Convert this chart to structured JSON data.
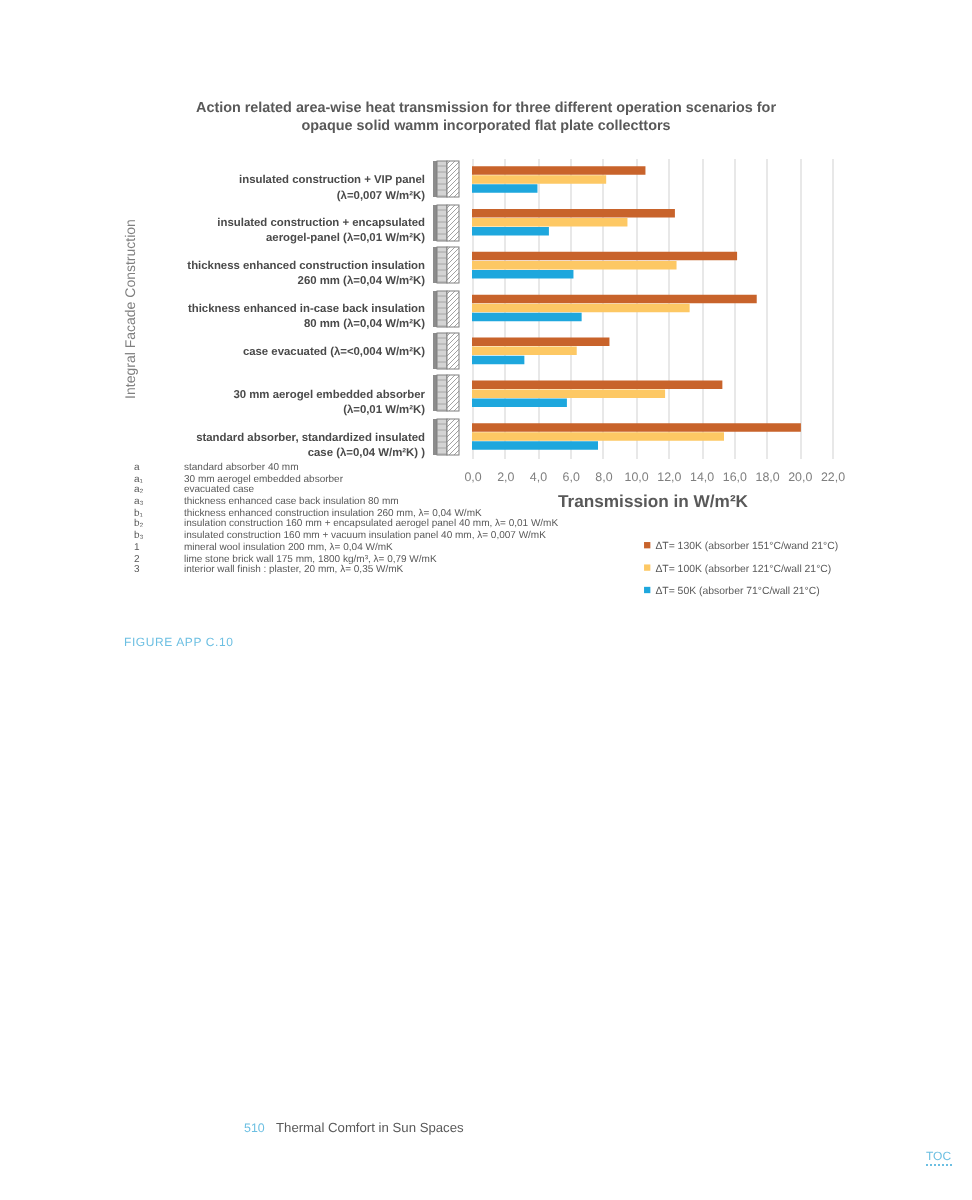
{
  "chart_data": {
    "type": "bar",
    "orientation": "horizontal",
    "title": "Action related area-wise heat transmission for three different operation scenarios for\nopaque solid wamm incorporated flat plate collecttors",
    "xlabel": "Transmission in W/m²K",
    "ylabel": "Integral Facade Construction",
    "categories": [
      "insulated construction + VIP panel\n(λ=0,007 W/m²K)",
      "insulated construction + encapsulated\naerogel-panel (λ=0,01 W/m²K)",
      "thickness enhanced construction insulation\n260 mm (λ=0,04 W/m²K)",
      "thickness enhanced in-case back insulation\n80 mm (λ=0,04 W/m²K)",
      "case evacuated (λ=<0,004 W/m²K)",
      "30 mm aerogel embedded absorber\n(λ=0,01 W/m²K)",
      "standard absorber, standardized insulated\ncase (λ=0,04 W/m²K) )"
    ],
    "series": [
      {
        "name": "ΔT= 130K (absorber 151°C/wand 21°C)",
        "color": "#c8632b",
        "values": [
          10.6,
          12.4,
          16.2,
          17.4,
          8.4,
          15.3,
          20.1
        ]
      },
      {
        "name": "ΔT= 100K (absorber 121°C/wall 21°C)",
        "color": "#fdc864",
        "values": [
          8.2,
          9.5,
          12.5,
          13.3,
          6.4,
          11.8,
          15.4
        ]
      },
      {
        "name": "ΔT= 50K (absorber 71°C/wall 21°C)",
        "color": "#1ea7dd",
        "values": [
          4.0,
          4.7,
          6.2,
          6.7,
          3.2,
          5.8,
          7.7
        ]
      }
    ],
    "xlim": [
      0,
      22
    ],
    "xticks": [
      {
        "value": 0,
        "label": "0,0"
      },
      {
        "value": 2,
        "label": "2,0"
      },
      {
        "value": 4,
        "label": "4,0"
      },
      {
        "value": 6,
        "label": "6,0"
      },
      {
        "value": 8,
        "label": "8,0"
      },
      {
        "value": 10,
        "label": "10,0"
      },
      {
        "value": 12,
        "label": "12,0"
      },
      {
        "value": 14,
        "label": "14,0"
      },
      {
        "value": 16,
        "label": "16,0"
      },
      {
        "value": 18,
        "label": "18,0"
      },
      {
        "value": 20,
        "label": "20,0"
      },
      {
        "value": 22,
        "label": "22,0"
      }
    ],
    "grid": "x",
    "legend": "bottom right",
    "annotations": [
      "a\tstandard absorber 40 mm",
      "a₁\t30 mm aerogel embedded absorber",
      "a₂\tevacuated case",
      "a₃\tthickness enhanced case back insulation 80 mm",
      "b₁\tthickness enhanced construction insulation 260 mm, λ= 0,04 W/mK",
      "b₂\tinsulation construction 160 mm + encapsulated aerogel panel 40 mm, λ= 0,01 W/mK",
      "b₃\tinsulated construction 160 mm + vacuum insulation panel 40 mm, λ= 0,007 W/mK",
      "1\tmineral wool insulation 200 mm, λ= 0,04 W/mK",
      "2\tlime stone brick wall 175 mm, 1800 kg/m³, λ= 0,79 W/mK",
      "3\tinterior wall finish : plaster, 20 mm, λ= 0,35 W/mK",
      "FIGURE APP C.10",
      "510",
      "Thermal Comfort in Sun Spaces",
      "TOC"
    ]
  }
}
